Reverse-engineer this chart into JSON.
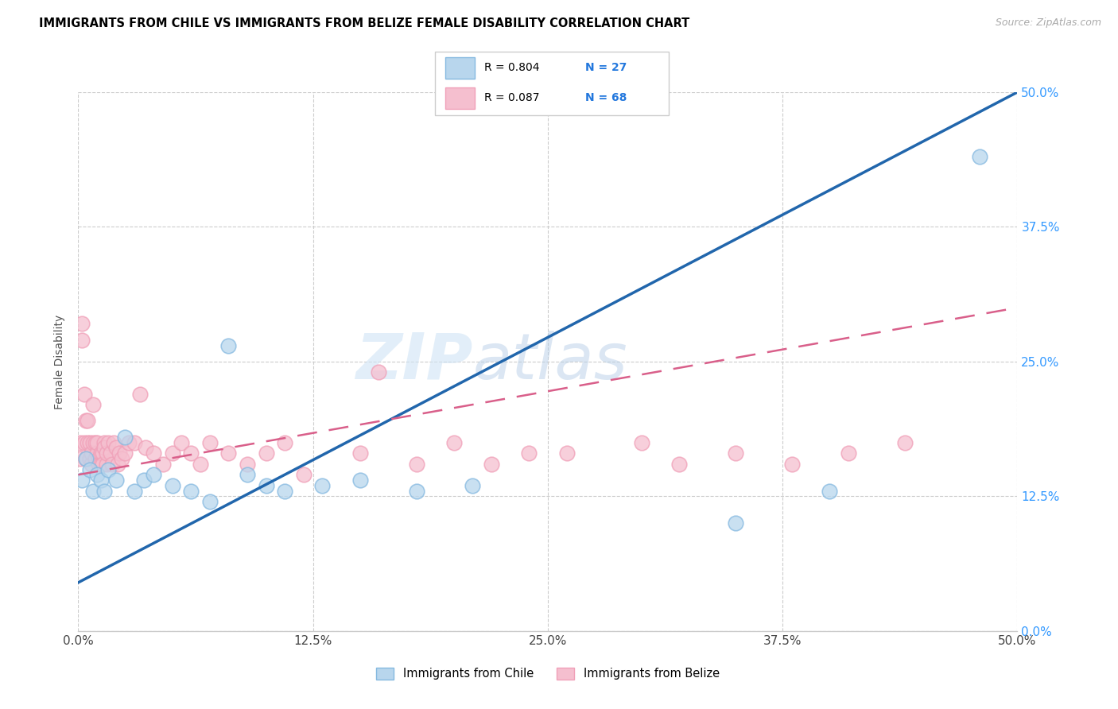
{
  "title": "IMMIGRANTS FROM CHILE VS IMMIGRANTS FROM BELIZE FEMALE DISABILITY CORRELATION CHART",
  "source": "Source: ZipAtlas.com",
  "ylabel": "Female Disability",
  "watermark": "ZIPatlas",
  "chile_color": "#85b9e0",
  "chile_color_fill": "#b8d6ed",
  "belize_color": "#f0a0b8",
  "belize_color_fill": "#f5bfcf",
  "line_chile_color": "#2166ac",
  "line_belize_color": "#d95f8a",
  "xlim": [
    0.0,
    0.5
  ],
  "ylim": [
    0.0,
    0.5
  ],
  "chile_line_x": [
    0.0,
    0.5
  ],
  "chile_line_y": [
    0.045,
    0.5
  ],
  "belize_line_x": [
    0.0,
    0.5
  ],
  "belize_line_y": [
    0.145,
    0.3
  ],
  "chile_x": [
    0.002,
    0.004,
    0.006,
    0.008,
    0.01,
    0.012,
    0.014,
    0.016,
    0.02,
    0.025,
    0.03,
    0.035,
    0.04,
    0.05,
    0.06,
    0.07,
    0.08,
    0.09,
    0.1,
    0.11,
    0.13,
    0.15,
    0.18,
    0.21,
    0.35,
    0.4,
    0.48
  ],
  "chile_y": [
    0.14,
    0.16,
    0.15,
    0.13,
    0.145,
    0.14,
    0.13,
    0.15,
    0.14,
    0.18,
    0.13,
    0.14,
    0.145,
    0.135,
    0.13,
    0.12,
    0.265,
    0.145,
    0.135,
    0.13,
    0.135,
    0.14,
    0.13,
    0.135,
    0.1,
    0.13,
    0.44
  ],
  "belize_x": [
    0.001,
    0.001,
    0.002,
    0.002,
    0.003,
    0.003,
    0.004,
    0.004,
    0.005,
    0.005,
    0.006,
    0.006,
    0.007,
    0.007,
    0.008,
    0.008,
    0.009,
    0.009,
    0.01,
    0.01,
    0.011,
    0.011,
    0.012,
    0.012,
    0.013,
    0.013,
    0.014,
    0.014,
    0.015,
    0.015,
    0.016,
    0.017,
    0.018,
    0.019,
    0.02,
    0.021,
    0.022,
    0.023,
    0.025,
    0.027,
    0.03,
    0.033,
    0.036,
    0.04,
    0.045,
    0.05,
    0.055,
    0.06,
    0.065,
    0.07,
    0.08,
    0.09,
    0.1,
    0.11,
    0.12,
    0.15,
    0.16,
    0.18,
    0.2,
    0.22,
    0.24,
    0.26,
    0.3,
    0.32,
    0.35,
    0.38,
    0.41,
    0.44
  ],
  "belize_y": [
    0.16,
    0.175,
    0.27,
    0.285,
    0.22,
    0.175,
    0.195,
    0.16,
    0.175,
    0.195,
    0.16,
    0.175,
    0.155,
    0.165,
    0.175,
    0.21,
    0.16,
    0.175,
    0.165,
    0.175,
    0.16,
    0.155,
    0.155,
    0.165,
    0.165,
    0.155,
    0.175,
    0.17,
    0.155,
    0.165,
    0.175,
    0.165,
    0.155,
    0.175,
    0.17,
    0.155,
    0.165,
    0.16,
    0.165,
    0.175,
    0.175,
    0.22,
    0.17,
    0.165,
    0.155,
    0.165,
    0.175,
    0.165,
    0.155,
    0.175,
    0.165,
    0.155,
    0.165,
    0.175,
    0.145,
    0.165,
    0.24,
    0.155,
    0.175,
    0.155,
    0.165,
    0.165,
    0.175,
    0.155,
    0.165,
    0.155,
    0.165,
    0.175
  ]
}
